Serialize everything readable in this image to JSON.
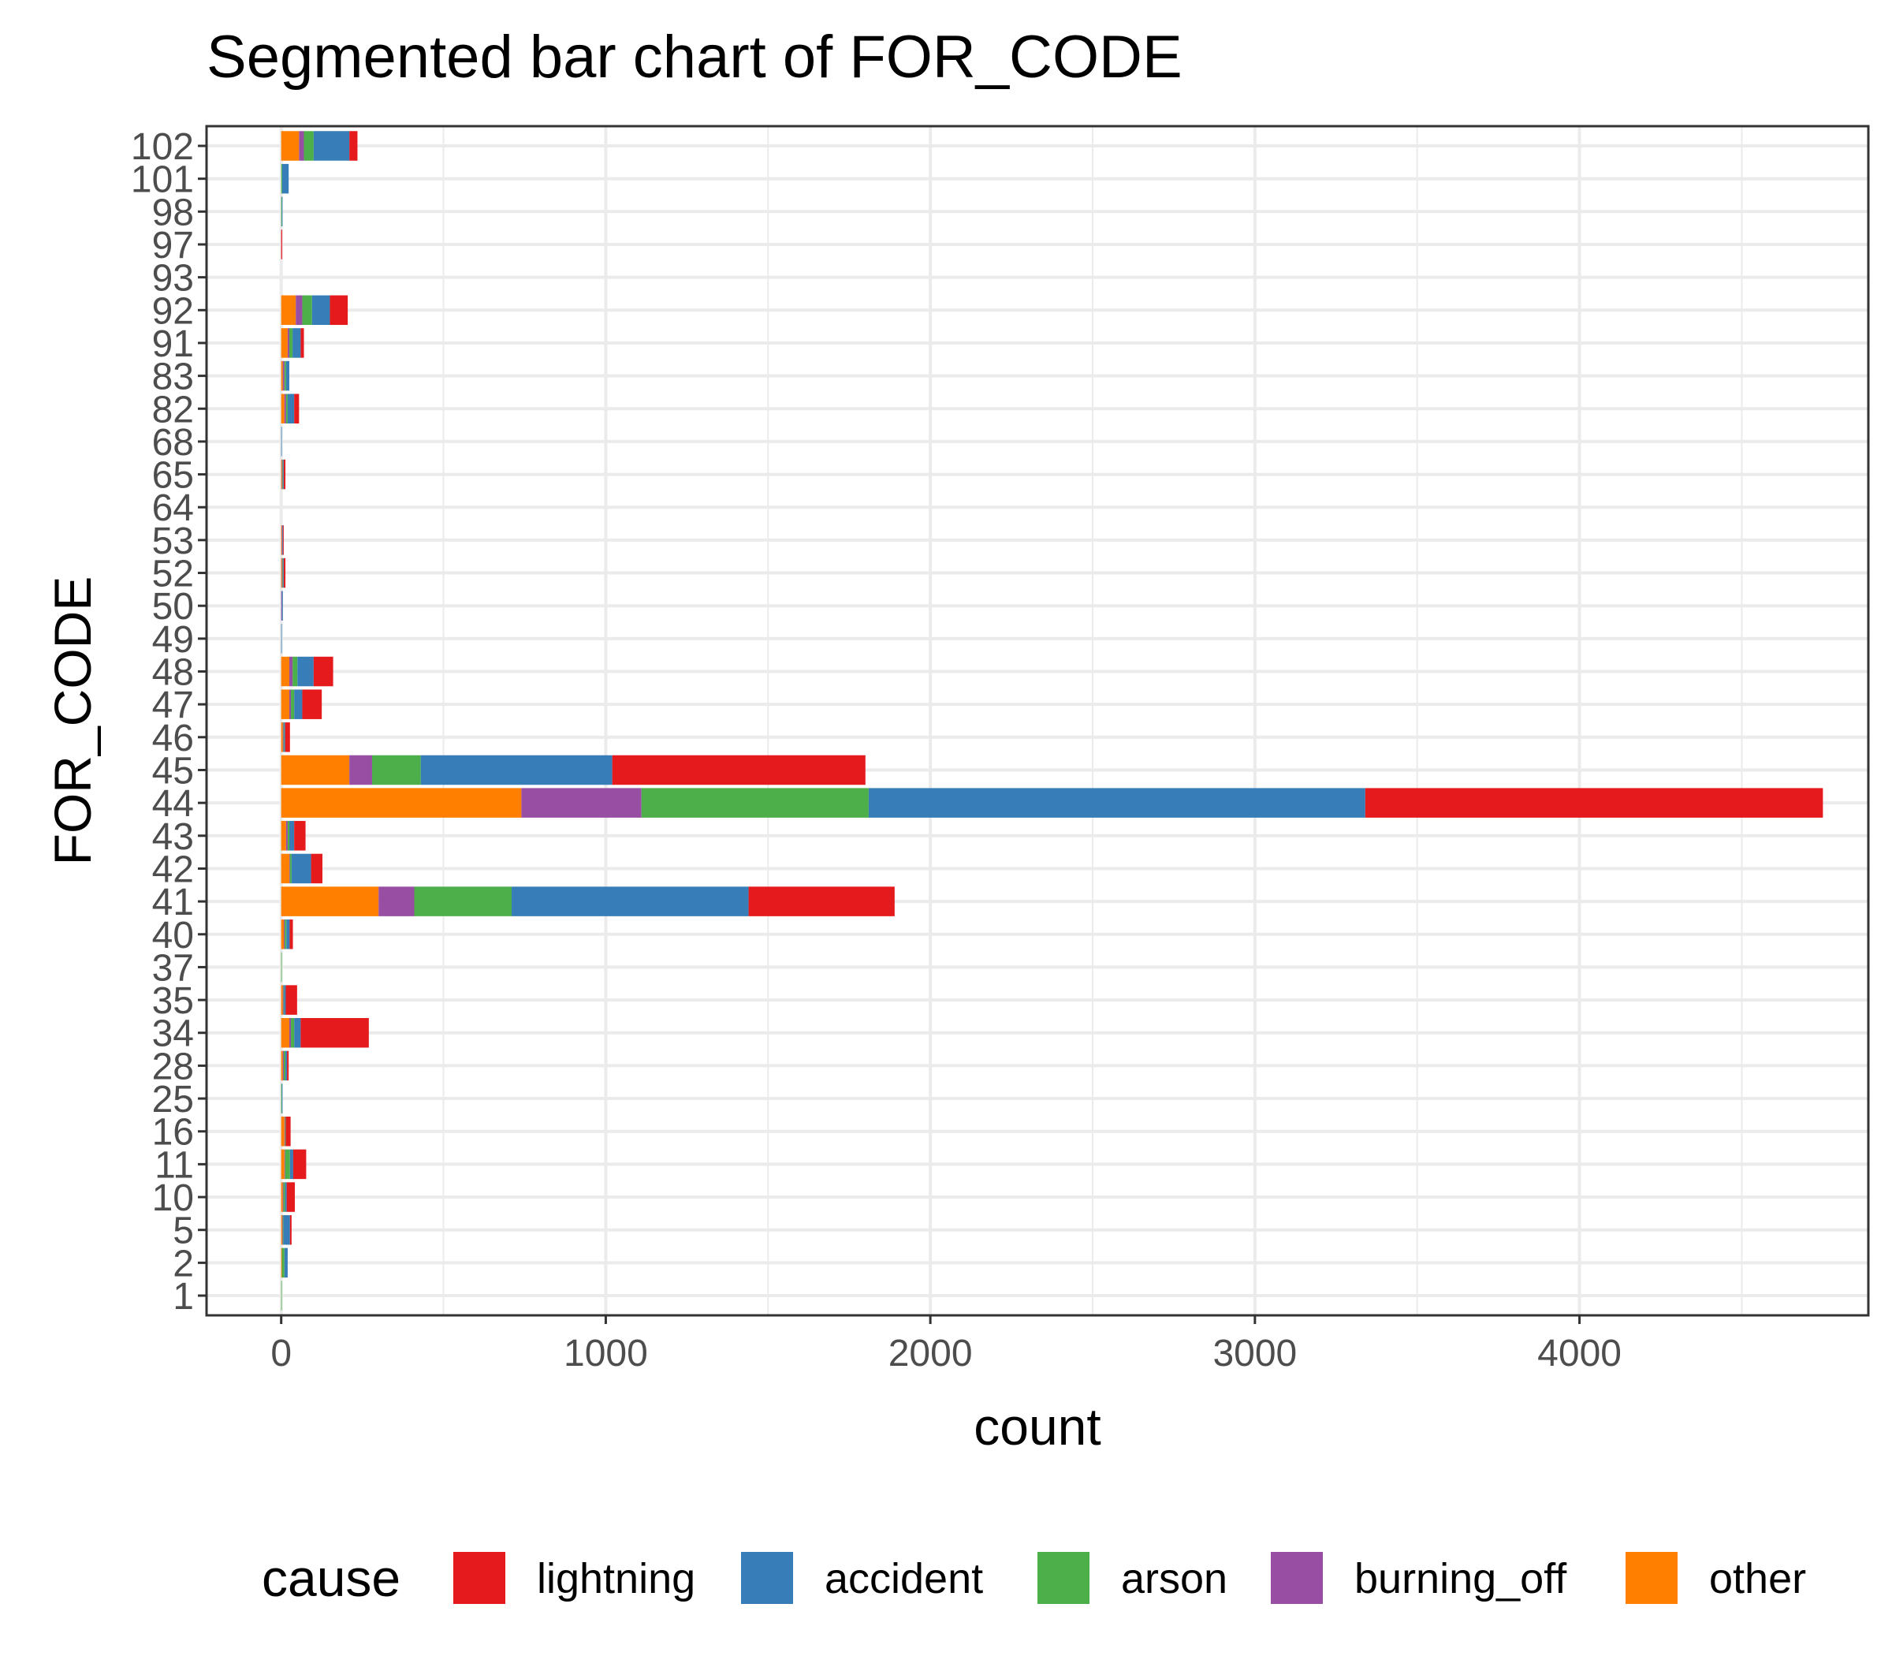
{
  "chart_data": {
    "type": "bar",
    "orientation": "horizontal",
    "stacked": true,
    "title": "Segmented bar chart of FOR_CODE",
    "xlabel": "count",
    "ylabel": "FOR_CODE",
    "xlim": [
      -230,
      4890
    ],
    "xticks": [
      0,
      1000,
      2000,
      3000,
      4000
    ],
    "grid": true,
    "legend": {
      "title": "cause",
      "position": "bottom"
    },
    "categories": [
      "1",
      "2",
      "5",
      "10",
      "11",
      "16",
      "25",
      "28",
      "34",
      "35",
      "37",
      "40",
      "41",
      "42",
      "43",
      "44",
      "45",
      "46",
      "47",
      "48",
      "49",
      "50",
      "52",
      "53",
      "64",
      "65",
      "68",
      "82",
      "83",
      "91",
      "92",
      "93",
      "97",
      "98",
      "101",
      "102"
    ],
    "stack_order": [
      "other",
      "burning_off",
      "arson",
      "accident",
      "lightning"
    ],
    "series": [
      {
        "name": "lightning",
        "color": "#E41A1C",
        "values": [
          0,
          0,
          5,
          25,
          40,
          15,
          0,
          5,
          210,
          35,
          0,
          10,
          450,
          35,
          35,
          1410,
          780,
          15,
          60,
          60,
          0,
          0,
          5,
          2,
          0,
          5,
          0,
          15,
          0,
          10,
          55,
          0,
          3,
          0,
          0,
          25
        ]
      },
      {
        "name": "accident",
        "color": "#377EB8",
        "values": [
          0,
          10,
          20,
          5,
          10,
          0,
          2,
          5,
          20,
          5,
          0,
          10,
          730,
          60,
          15,
          1530,
          590,
          3,
          25,
          50,
          2,
          3,
          2,
          2,
          0,
          2,
          2,
          20,
          10,
          25,
          55,
          0,
          0,
          2,
          20,
          110
        ]
      },
      {
        "name": "arson",
        "color": "#4DAF4A",
        "values": [
          2,
          8,
          2,
          5,
          15,
          2,
          2,
          5,
          10,
          2,
          2,
          5,
          300,
          5,
          5,
          700,
          150,
          2,
          10,
          15,
          0,
          0,
          2,
          0,
          0,
          2,
          0,
          5,
          5,
          10,
          30,
          0,
          0,
          2,
          3,
          30
        ]
      },
      {
        "name": "burning_off",
        "color": "#984EA3",
        "values": [
          0,
          0,
          2,
          2,
          2,
          2,
          0,
          3,
          5,
          2,
          0,
          3,
          110,
          2,
          5,
          370,
          70,
          2,
          5,
          10,
          0,
          2,
          2,
          2,
          0,
          2,
          0,
          5,
          5,
          5,
          20,
          0,
          0,
          0,
          0,
          15
        ]
      },
      {
        "name": "other",
        "color": "#FF7F00",
        "values": [
          0,
          2,
          3,
          5,
          10,
          10,
          0,
          5,
          25,
          5,
          0,
          8,
          300,
          25,
          15,
          740,
          210,
          5,
          25,
          25,
          0,
          0,
          2,
          2,
          0,
          2,
          0,
          10,
          5,
          20,
          45,
          0,
          0,
          0,
          0,
          55
        ]
      }
    ]
  }
}
